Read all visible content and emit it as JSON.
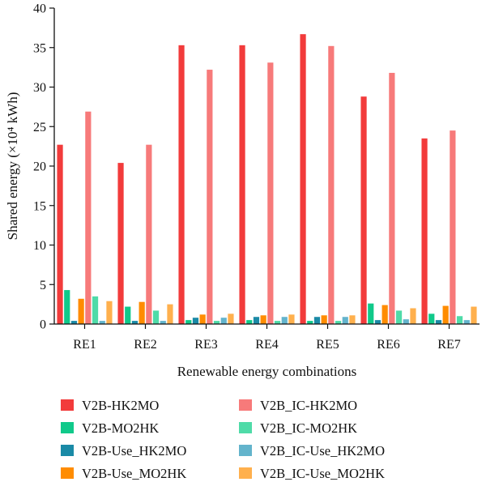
{
  "chart_data": {
    "type": "bar",
    "xlabel": "Renewable energy combinations",
    "ylabel": "Shared energy (×10⁴ kWh)",
    "ylim": [
      0,
      40
    ],
    "yticks": [
      0,
      5,
      10,
      15,
      20,
      25,
      30,
      35,
      40
    ],
    "grid": false,
    "legend_position": "bottom",
    "categories": [
      "RE1",
      "RE2",
      "RE3",
      "RE4",
      "RE5",
      "RE6",
      "RE7"
    ],
    "series": [
      {
        "name": "V2B-HK2MO",
        "color": "#f23b3b",
        "values": [
          22.7,
          20.4,
          35.3,
          35.3,
          36.7,
          28.8,
          23.5
        ]
      },
      {
        "name": "V2B-MO2HK",
        "color": "#10c98a",
        "values": [
          4.3,
          2.2,
          0.5,
          0.5,
          0.4,
          2.6,
          1.3
        ]
      },
      {
        "name": "V2B-Use_HK2MO",
        "color": "#1a8aa6",
        "values": [
          0.4,
          0.4,
          0.8,
          0.9,
          0.9,
          0.5,
          0.5
        ]
      },
      {
        "name": "V2B-Use_MO2HK",
        "color": "#ff8c00",
        "values": [
          3.2,
          2.8,
          1.2,
          1.1,
          1.1,
          2.4,
          2.3
        ]
      },
      {
        "name": "V2B_IC-HK2MO",
        "color": "#f77a7a",
        "values": [
          26.9,
          22.7,
          32.2,
          33.1,
          35.2,
          31.8,
          24.5
        ]
      },
      {
        "name": "V2B_IC-MO2HK",
        "color": "#4fdba8",
        "values": [
          3.5,
          1.7,
          0.4,
          0.4,
          0.4,
          1.7,
          1.0
        ]
      },
      {
        "name": "V2B_IC-Use_HK2MO",
        "color": "#63b4cc",
        "values": [
          0.4,
          0.4,
          0.8,
          0.9,
          0.9,
          0.6,
          0.5
        ]
      },
      {
        "name": "V2B_IC-Use_MO2HK",
        "color": "#ffb04d",
        "values": [
          2.9,
          2.5,
          1.3,
          1.2,
          1.1,
          2.0,
          2.2
        ]
      }
    ]
  }
}
